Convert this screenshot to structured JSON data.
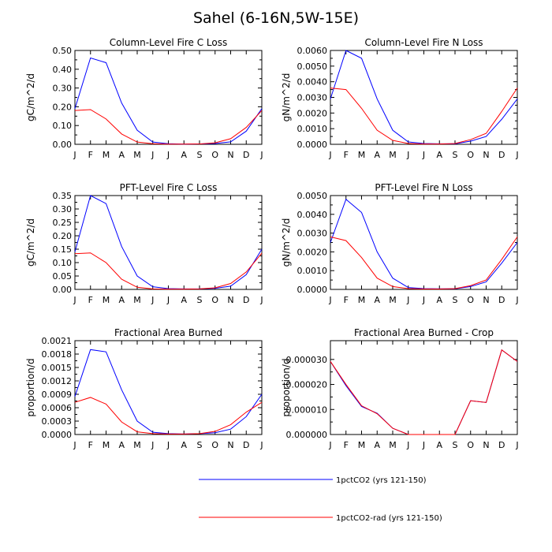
{
  "figure": {
    "title": "Sahel (6-16N,5W-15E)"
  },
  "legend": [
    {
      "label": "1pctCO2 (yrs 121-150)",
      "color": "#0000ff"
    },
    {
      "label": "1pctCO2-rad (yrs 121-150)",
      "color": "#ff0000"
    }
  ],
  "chart_data": [
    {
      "type": "line",
      "title": "Column-Level Fire C Loss",
      "ylabel": "gC/m^2/d",
      "xlabel": "",
      "x": [
        "J",
        "F",
        "M",
        "A",
        "M",
        "J",
        "J",
        "A",
        "S",
        "O",
        "N",
        "D",
        "J"
      ],
      "ylim": [
        0,
        0.5
      ],
      "yticks": [
        "0.00",
        "0.10",
        "0.20",
        "0.30",
        "0.40",
        "0.50"
      ],
      "series": [
        {
          "name": "1pctCO2 (yrs 121-150)",
          "color": "#0000ff",
          "values": [
            0.19,
            0.46,
            0.435,
            0.22,
            0.075,
            0.012,
            0.003,
            0.001,
            0.002,
            0.004,
            0.013,
            0.07,
            0.19
          ]
        },
        {
          "name": "1pctCO2-rad (yrs 121-150)",
          "color": "#ff0000",
          "values": [
            0.18,
            0.185,
            0.135,
            0.055,
            0.012,
            0.003,
            0.001,
            0.001,
            0.002,
            0.008,
            0.03,
            0.09,
            0.18
          ]
        }
      ]
    },
    {
      "type": "line",
      "title": "Column-Level Fire N Loss",
      "ylabel": "gN/m^2/d",
      "xlabel": "",
      "x": [
        "J",
        "F",
        "M",
        "A",
        "M",
        "J",
        "J",
        "A",
        "S",
        "O",
        "N",
        "D",
        "J"
      ],
      "ylim": [
        0,
        0.006
      ],
      "yticks": [
        "0.0000",
        "0.0010",
        "0.0020",
        "0.0030",
        "0.0040",
        "0.0050",
        "0.0060"
      ],
      "series": [
        {
          "name": "1pctCO2 (yrs 121-150)",
          "color": "#0000ff",
          "values": [
            0.0029,
            0.006,
            0.0055,
            0.0029,
            0.0009,
            0.00015,
            5e-05,
            3e-05,
            3e-05,
            0.0002,
            0.0005,
            0.0016,
            0.0029
          ]
        },
        {
          "name": "1pctCO2-rad (yrs 121-150)",
          "color": "#ff0000",
          "values": [
            0.0036,
            0.0035,
            0.0023,
            0.0009,
            0.00025,
            5e-05,
            2e-05,
            2e-05,
            5e-05,
            0.0003,
            0.0007,
            0.0021,
            0.0036
          ]
        }
      ]
    },
    {
      "type": "line",
      "title": "PFT-Level Fire C Loss",
      "ylabel": "gC/m^2/d",
      "xlabel": "",
      "x": [
        "J",
        "F",
        "M",
        "A",
        "M",
        "J",
        "J",
        "A",
        "S",
        "O",
        "N",
        "D",
        "J"
      ],
      "ylim": [
        0,
        0.35
      ],
      "yticks": [
        "0.00",
        "0.05",
        "0.10",
        "0.15",
        "0.20",
        "0.25",
        "0.30",
        "0.35"
      ],
      "series": [
        {
          "name": "1pctCO2 (yrs 121-150)",
          "color": "#0000ff",
          "values": [
            0.14,
            0.35,
            0.32,
            0.16,
            0.05,
            0.01,
            0.003,
            0.002,
            0.002,
            0.004,
            0.012,
            0.055,
            0.15
          ]
        },
        {
          "name": "1pctCO2-rad (yrs 121-150)",
          "color": "#ff0000",
          "values": [
            0.133,
            0.136,
            0.1,
            0.038,
            0.008,
            0.002,
            0.001,
            0.001,
            0.002,
            0.006,
            0.022,
            0.065,
            0.135
          ]
        }
      ]
    },
    {
      "type": "line",
      "title": "PFT-Level Fire N Loss",
      "ylabel": "gN/m^2/d",
      "xlabel": "",
      "x": [
        "J",
        "F",
        "M",
        "A",
        "M",
        "J",
        "J",
        "A",
        "S",
        "O",
        "N",
        "D",
        "J"
      ],
      "ylim": [
        0,
        0.005
      ],
      "yticks": [
        "0.0000",
        "0.0010",
        "0.0020",
        "0.0030",
        "0.0040",
        "0.0050"
      ],
      "series": [
        {
          "name": "1pctCO2 (yrs 121-150)",
          "color": "#0000ff",
          "values": [
            0.0025,
            0.0048,
            0.0041,
            0.002,
            0.0006,
            0.0001,
            4e-05,
            3e-05,
            3e-05,
            0.00015,
            0.0004,
            0.0014,
            0.0025
          ]
        },
        {
          "name": "1pctCO2-rad (yrs 121-150)",
          "color": "#ff0000",
          "values": [
            0.0028,
            0.0026,
            0.0017,
            0.0006,
            0.00015,
            4e-05,
            2e-05,
            2e-05,
            4e-05,
            0.0002,
            0.0005,
            0.0016,
            0.0028
          ]
        }
      ]
    },
    {
      "type": "line",
      "title": "Fractional Area Burned",
      "ylabel": "proportion/d",
      "xlabel": "",
      "x": [
        "J",
        "F",
        "M",
        "A",
        "M",
        "J",
        "J",
        "A",
        "S",
        "O",
        "N",
        "D",
        "J"
      ],
      "ylim": [
        0,
        0.0021
      ],
      "yticks": [
        "0.0000",
        "0.0003",
        "0.0006",
        "0.0009",
        "0.0012",
        "0.0015",
        "0.0018",
        "0.0021"
      ],
      "series": [
        {
          "name": "1pctCO2 (yrs 121-150)",
          "color": "#0000ff",
          "values": [
            0.00085,
            0.0019,
            0.00185,
            0.001,
            0.0003,
            5e-05,
            2e-05,
            1e-05,
            2e-05,
            4e-05,
            0.00012,
            0.0004,
            0.0009
          ]
        },
        {
          "name": "1pctCO2-rad (yrs 121-150)",
          "color": "#ff0000",
          "values": [
            0.00072,
            0.00083,
            0.00068,
            0.00028,
            6e-05,
            2e-05,
            1e-05,
            1e-05,
            2e-05,
            7e-05,
            0.00022,
            0.0005,
            0.00072
          ]
        }
      ]
    },
    {
      "type": "line",
      "title": "Fractional Area Burned - Crop",
      "ylabel": "proportion/d",
      "xlabel": "",
      "x": [
        "J",
        "F",
        "M",
        "A",
        "M",
        "J",
        "J",
        "A",
        "S",
        "O",
        "N",
        "D",
        "J"
      ],
      "ylim": [
        0,
        3.75e-05
      ],
      "yticks": [
        "0.000000",
        "0.000010",
        "0.000020",
        "0.000030"
      ],
      "ytick_values": [
        0,
        1e-05,
        2e-05,
        3e-05
      ],
      "series": [
        {
          "name": "1pctCO2 (yrs 121-150)",
          "color": "#0000ff",
          "values": [
            2.92e-05,
            1.95e-05,
            1.12e-05,
            8.5e-06,
            2.5e-06,
            0,
            0,
            0,
            0,
            1.35e-05,
            1.28e-05,
            3.38e-05,
            2.92e-05
          ]
        },
        {
          "name": "1pctCO2-rad (yrs 121-150)",
          "color": "#ff0000",
          "values": [
            2.92e-05,
            2e-05,
            1.15e-05,
            8.3e-06,
            2.5e-06,
            0,
            0,
            0,
            0,
            1.35e-05,
            1.28e-05,
            3.38e-05,
            2.92e-05
          ]
        }
      ]
    }
  ]
}
